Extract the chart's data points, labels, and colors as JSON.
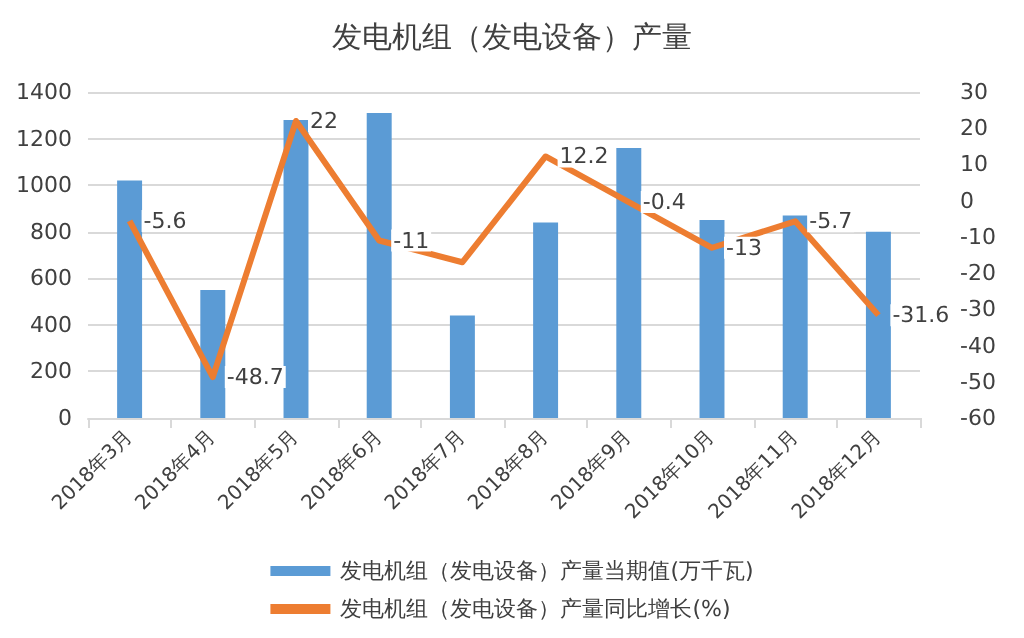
{
  "chart_data": {
    "type": "bar",
    "title": "发电机组（发电设备）产量",
    "categories": [
      "2018年3月",
      "2018年4月",
      "2018年5月",
      "2018年6月",
      "2018年7月",
      "2018年8月",
      "2018年9月",
      "2018年10月",
      "2018年11月",
      "2018年12月"
    ],
    "series": [
      {
        "name": "发电机组（发电设备）产量当期值(万千瓦)",
        "color": "#5b9bd5",
        "values": [
          1020,
          550,
          1280,
          1310,
          440,
          840,
          1160,
          850,
          870,
          800
        ]
      },
      {
        "name": "发电机组（发电设备）产量同比增长(%)",
        "type": "line",
        "axis": "y2",
        "color": "#ed7d31",
        "values": [
          -5.6,
          -48.7,
          22,
          -11,
          -17,
          12.2,
          -0.4,
          -13,
          -5.7,
          -31.6
        ],
        "value_labels": [
          "-5.6",
          "-48.7",
          "22",
          "-11",
          null,
          "12.2",
          "-0.4",
          "-13",
          "-5.7",
          "-31.6"
        ]
      }
    ],
    "ylim": [
      0,
      1400
    ],
    "yticks": [
      0,
      200,
      400,
      600,
      800,
      1000,
      1200,
      1400
    ],
    "y2lim": [
      -60,
      30
    ],
    "y2ticks": [
      -60,
      -50,
      -40,
      -30,
      -20,
      -10,
      0,
      10,
      20,
      30
    ],
    "grid": "y",
    "legend": "bottom",
    "marker": "none",
    "line_style": "solid"
  }
}
